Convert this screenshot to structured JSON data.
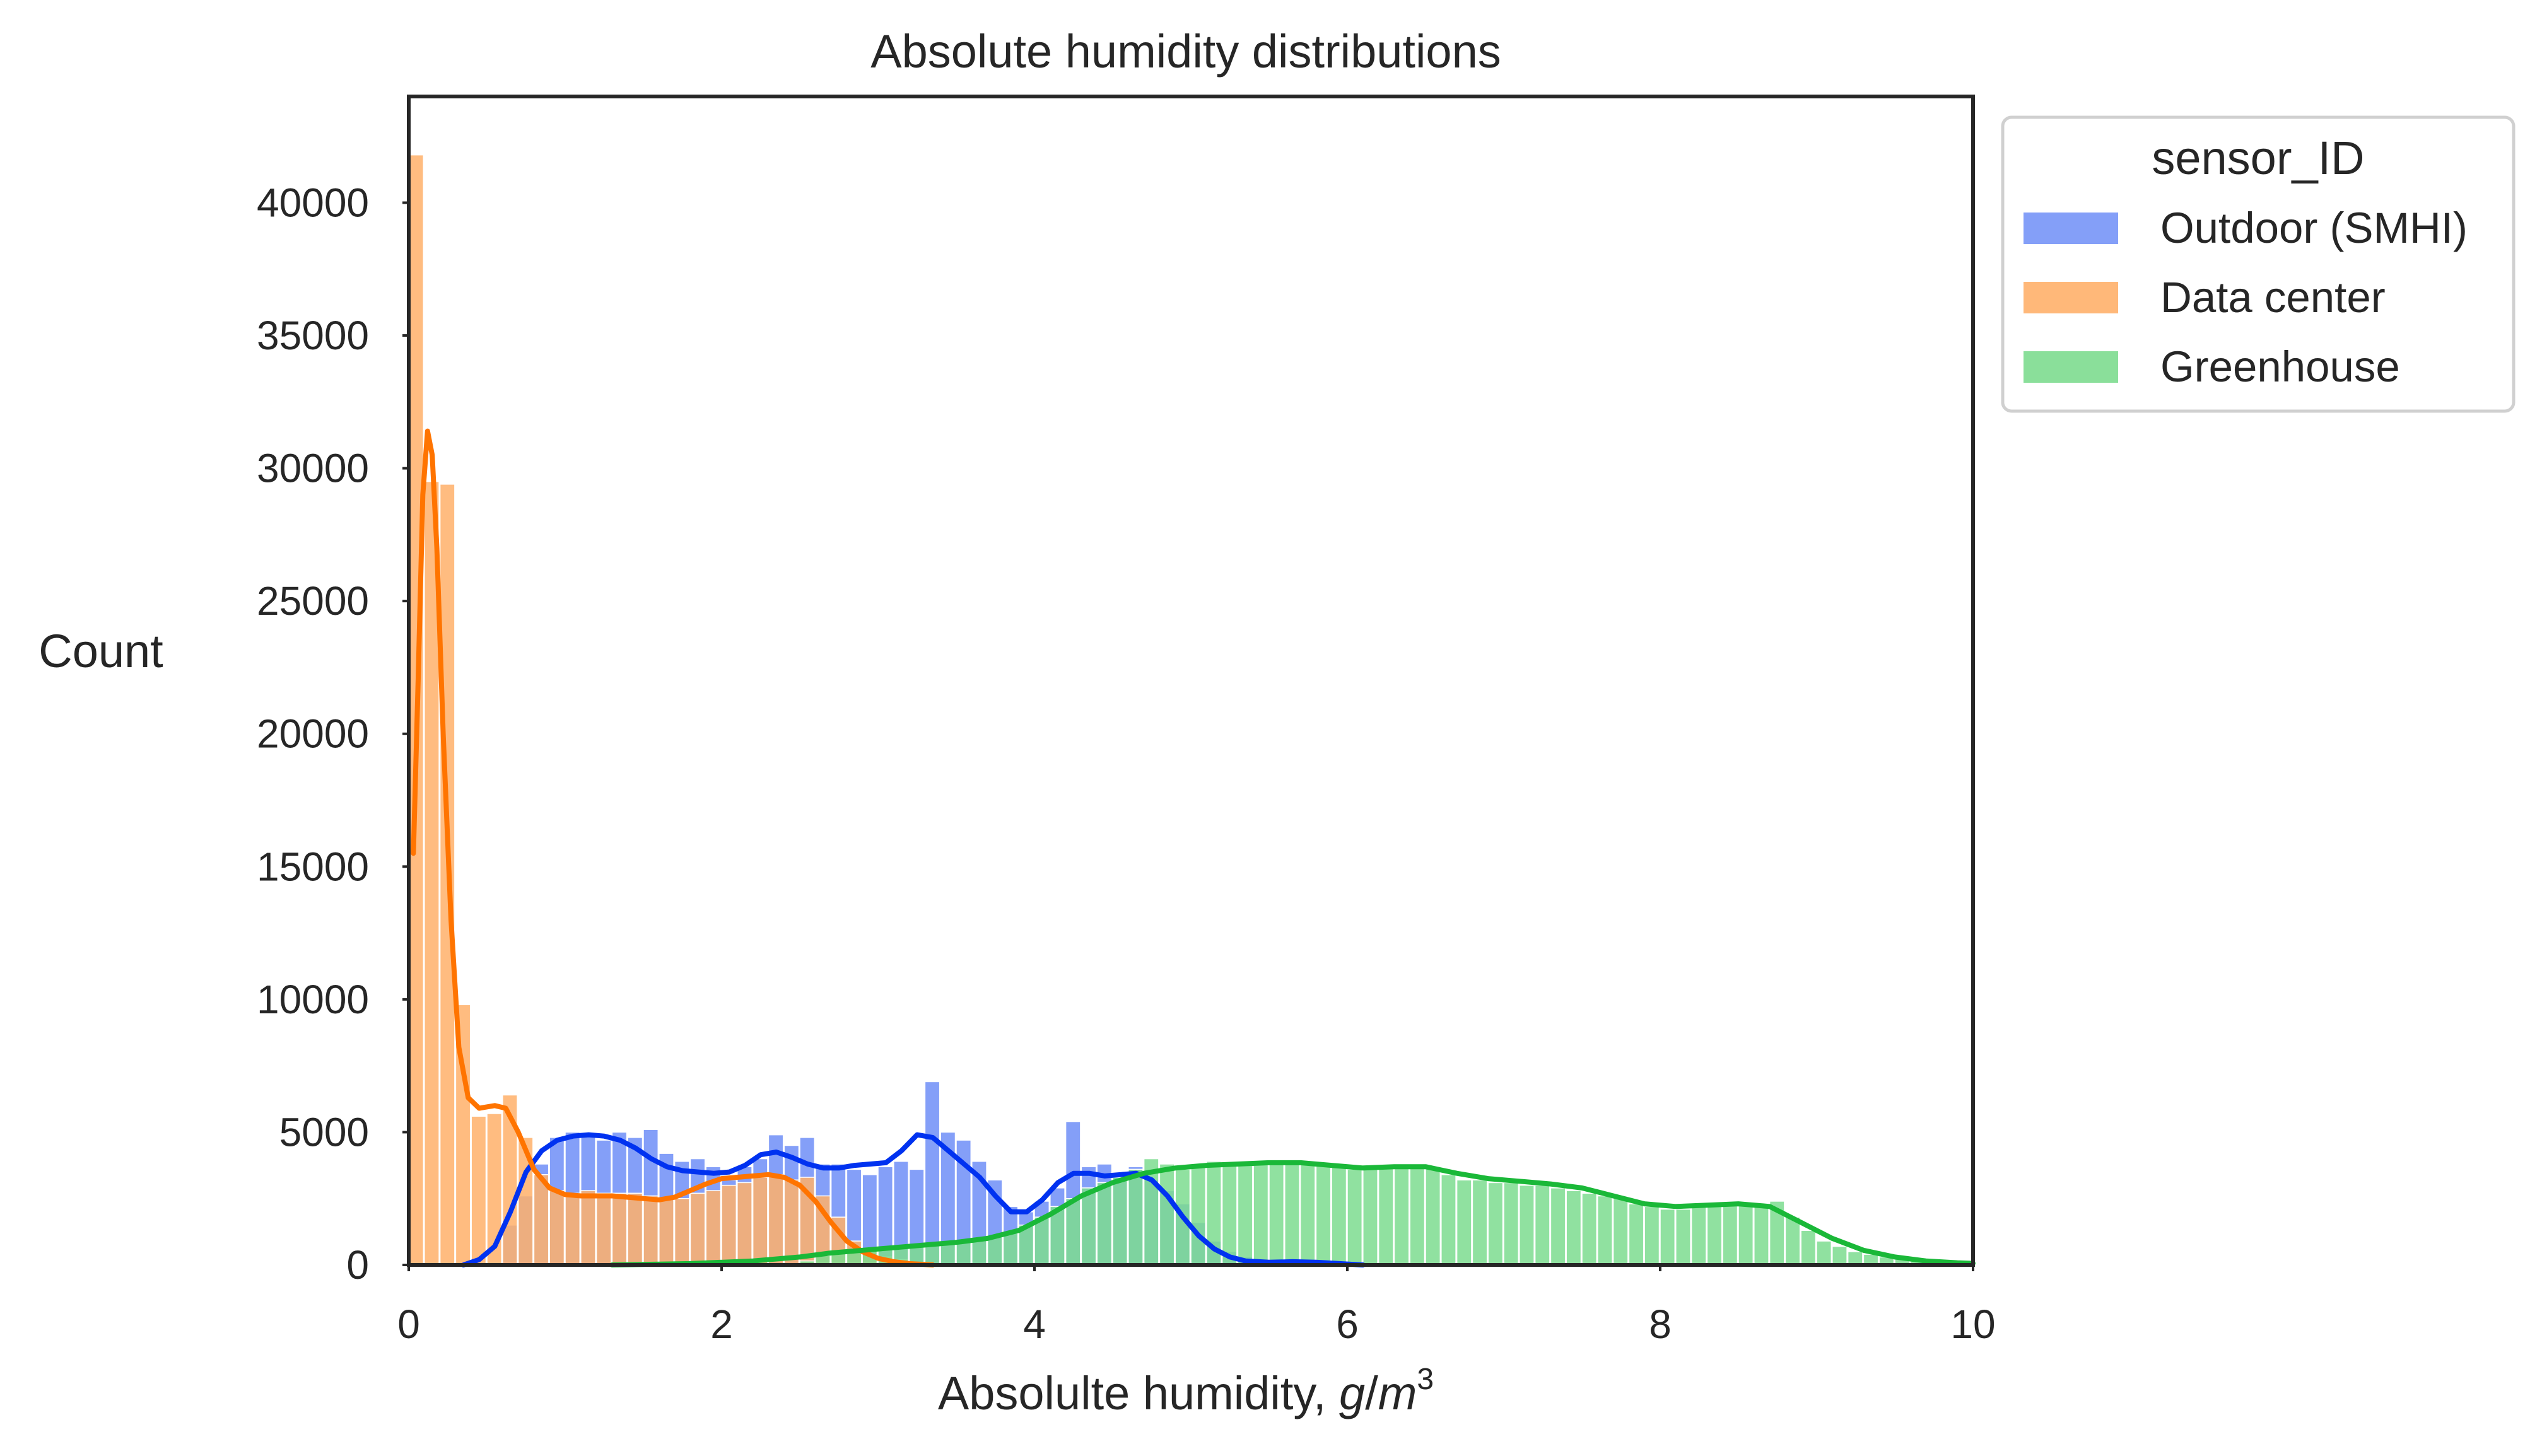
{
  "chart_data": {
    "type": "histogram",
    "title": "Absolute humidity distributions",
    "xlabel_text": "Absolulte humidity, ",
    "xlabel_unit_g": "g",
    "xlabel_unit_slash": "/",
    "xlabel_unit_m": "m",
    "xlabel_unit_exp": "3",
    "ylabel": "Count",
    "xlim": [
      0,
      10
    ],
    "ylim": [
      0,
      44000
    ],
    "xticks": [
      0,
      2,
      4,
      6,
      8,
      10
    ],
    "yticks": [
      0,
      5000,
      10000,
      15000,
      20000,
      25000,
      30000,
      35000,
      40000
    ],
    "bin_width": 0.1,
    "legend": {
      "title": "sensor_ID",
      "position": "upper right, outside plot",
      "entries": [
        "Outdoor (SMHI)",
        "Data center",
        "Greenhouse"
      ]
    },
    "series": [
      {
        "name": "Outdoor (SMHI)",
        "bar_color": "#5b7ff5",
        "kde_color": "#0032f0",
        "bins": [
          [
            0.6,
            1500
          ],
          [
            0.7,
            2600
          ],
          [
            0.8,
            3800
          ],
          [
            0.9,
            4800
          ],
          [
            1.0,
            5000
          ],
          [
            1.1,
            4900
          ],
          [
            1.2,
            4700
          ],
          [
            1.3,
            5000
          ],
          [
            1.4,
            4800
          ],
          [
            1.5,
            5100
          ],
          [
            1.6,
            4200
          ],
          [
            1.7,
            3900
          ],
          [
            1.8,
            4000
          ],
          [
            1.9,
            3700
          ],
          [
            2.0,
            3200
          ],
          [
            2.1,
            3700
          ],
          [
            2.2,
            4000
          ],
          [
            2.3,
            4900
          ],
          [
            2.4,
            4500
          ],
          [
            2.5,
            4800
          ],
          [
            2.6,
            3800
          ],
          [
            2.7,
            3800
          ],
          [
            2.8,
            3600
          ],
          [
            2.9,
            3400
          ],
          [
            3.0,
            3700
          ],
          [
            3.1,
            3900
          ],
          [
            3.2,
            3600
          ],
          [
            3.3,
            6900
          ],
          [
            3.4,
            5000
          ],
          [
            3.5,
            4700
          ],
          [
            3.6,
            3900
          ],
          [
            3.7,
            3200
          ],
          [
            3.8,
            2200
          ],
          [
            3.9,
            2000
          ],
          [
            4.0,
            2400
          ],
          [
            4.1,
            2900
          ],
          [
            4.2,
            5400
          ],
          [
            4.3,
            3700
          ],
          [
            4.4,
            3800
          ],
          [
            4.5,
            3400
          ],
          [
            4.6,
            3700
          ],
          [
            4.7,
            3200
          ],
          [
            4.8,
            2800
          ],
          [
            4.9,
            2300
          ],
          [
            5.0,
            1600
          ],
          [
            5.1,
            900
          ],
          [
            5.2,
            500
          ],
          [
            5.3,
            300
          ],
          [
            5.4,
            200
          ],
          [
            5.5,
            150
          ],
          [
            5.6,
            120
          ],
          [
            5.7,
            150
          ],
          [
            5.8,
            100
          ],
          [
            5.9,
            60
          ],
          [
            6.0,
            30
          ]
        ],
        "kde": [
          [
            0.35,
            0
          ],
          [
            0.45,
            200
          ],
          [
            0.55,
            700
          ],
          [
            0.65,
            2000
          ],
          [
            0.75,
            3500
          ],
          [
            0.85,
            4300
          ],
          [
            0.95,
            4700
          ],
          [
            1.05,
            4850
          ],
          [
            1.15,
            4900
          ],
          [
            1.25,
            4850
          ],
          [
            1.35,
            4700
          ],
          [
            1.45,
            4400
          ],
          [
            1.55,
            4000
          ],
          [
            1.65,
            3700
          ],
          [
            1.75,
            3550
          ],
          [
            1.85,
            3500
          ],
          [
            1.95,
            3450
          ],
          [
            2.05,
            3500
          ],
          [
            2.15,
            3750
          ],
          [
            2.25,
            4150
          ],
          [
            2.35,
            4250
          ],
          [
            2.45,
            4050
          ],
          [
            2.55,
            3800
          ],
          [
            2.65,
            3650
          ],
          [
            2.75,
            3650
          ],
          [
            2.85,
            3750
          ],
          [
            2.95,
            3800
          ],
          [
            3.05,
            3850
          ],
          [
            3.15,
            4300
          ],
          [
            3.25,
            4900
          ],
          [
            3.35,
            4800
          ],
          [
            3.45,
            4300
          ],
          [
            3.55,
            3800
          ],
          [
            3.65,
            3300
          ],
          [
            3.75,
            2600
          ],
          [
            3.85,
            2000
          ],
          [
            3.95,
            2000
          ],
          [
            4.05,
            2450
          ],
          [
            4.15,
            3100
          ],
          [
            4.25,
            3450
          ],
          [
            4.35,
            3450
          ],
          [
            4.45,
            3350
          ],
          [
            4.55,
            3400
          ],
          [
            4.65,
            3450
          ],
          [
            4.75,
            3200
          ],
          [
            4.85,
            2600
          ],
          [
            4.95,
            1800
          ],
          [
            5.05,
            1100
          ],
          [
            5.15,
            600
          ],
          [
            5.25,
            300
          ],
          [
            5.35,
            150
          ],
          [
            5.5,
            100
          ],
          [
            5.65,
            120
          ],
          [
            5.8,
            100
          ],
          [
            5.95,
            50
          ],
          [
            6.1,
            0
          ]
        ]
      },
      {
        "name": "Data center",
        "bar_color": "#ffb06a",
        "kde_color": "#ff7400",
        "bins": [
          [
            0.0,
            41800
          ],
          [
            0.1,
            29500
          ],
          [
            0.2,
            29400
          ],
          [
            0.3,
            9800
          ],
          [
            0.4,
            5600
          ],
          [
            0.5,
            5700
          ],
          [
            0.6,
            6400
          ],
          [
            0.7,
            4800
          ],
          [
            0.8,
            3400
          ],
          [
            0.9,
            2800
          ],
          [
            1.0,
            2700
          ],
          [
            1.1,
            2800
          ],
          [
            1.2,
            2700
          ],
          [
            1.3,
            2700
          ],
          [
            1.4,
            2700
          ],
          [
            1.5,
            2600
          ],
          [
            1.6,
            2500
          ],
          [
            1.7,
            2500
          ],
          [
            1.8,
            2700
          ],
          [
            1.9,
            2800
          ],
          [
            2.0,
            3000
          ],
          [
            2.1,
            3100
          ],
          [
            2.2,
            3300
          ],
          [
            2.3,
            3400
          ],
          [
            2.4,
            3200
          ],
          [
            2.5,
            3300
          ],
          [
            2.6,
            2600
          ],
          [
            2.7,
            1800
          ],
          [
            2.8,
            900
          ],
          [
            2.9,
            500
          ],
          [
            3.0,
            300
          ],
          [
            3.1,
            200
          ],
          [
            3.2,
            100
          ],
          [
            3.3,
            60
          ],
          [
            3.4,
            30
          ]
        ],
        "kde": [
          [
            0.03,
            15500
          ],
          [
            0.06,
            22000
          ],
          [
            0.09,
            29000
          ],
          [
            0.12,
            31400
          ],
          [
            0.15,
            30500
          ],
          [
            0.18,
            27000
          ],
          [
            0.22,
            20000
          ],
          [
            0.27,
            13000
          ],
          [
            0.32,
            8200
          ],
          [
            0.38,
            6300
          ],
          [
            0.45,
            5900
          ],
          [
            0.55,
            6000
          ],
          [
            0.62,
            5900
          ],
          [
            0.7,
            5000
          ],
          [
            0.8,
            3600
          ],
          [
            0.9,
            2900
          ],
          [
            1.0,
            2650
          ],
          [
            1.1,
            2600
          ],
          [
            1.2,
            2600
          ],
          [
            1.3,
            2600
          ],
          [
            1.4,
            2550
          ],
          [
            1.5,
            2500
          ],
          [
            1.6,
            2450
          ],
          [
            1.7,
            2550
          ],
          [
            1.8,
            2800
          ],
          [
            1.9,
            3050
          ],
          [
            2.0,
            3250
          ],
          [
            2.1,
            3300
          ],
          [
            2.2,
            3350
          ],
          [
            2.3,
            3400
          ],
          [
            2.4,
            3300
          ],
          [
            2.5,
            3000
          ],
          [
            2.6,
            2400
          ],
          [
            2.7,
            1600
          ],
          [
            2.8,
            900
          ],
          [
            2.9,
            500
          ],
          [
            3.0,
            250
          ],
          [
            3.1,
            120
          ],
          [
            3.2,
            50
          ],
          [
            3.35,
            0
          ]
        ]
      },
      {
        "name": "Greenhouse",
        "bar_color": "#7ddc8f",
        "kde_color": "#1ab838",
        "bins": [
          [
            1.5,
            30
          ],
          [
            2.0,
            60
          ],
          [
            2.5,
            150
          ],
          [
            2.6,
            350
          ],
          [
            2.7,
            450
          ],
          [
            2.8,
            500
          ],
          [
            2.9,
            550
          ],
          [
            3.0,
            650
          ],
          [
            3.1,
            700
          ],
          [
            3.2,
            720
          ],
          [
            3.3,
            750
          ],
          [
            3.4,
            800
          ],
          [
            3.5,
            850
          ],
          [
            3.6,
            950
          ],
          [
            3.7,
            1050
          ],
          [
            3.8,
            1200
          ],
          [
            3.9,
            1500
          ],
          [
            4.0,
            1800
          ],
          [
            4.1,
            2200
          ],
          [
            4.2,
            2500
          ],
          [
            4.3,
            2900
          ],
          [
            4.4,
            3100
          ],
          [
            4.5,
            3300
          ],
          [
            4.6,
            3600
          ],
          [
            4.7,
            4000
          ],
          [
            4.8,
            3800
          ],
          [
            4.9,
            3600
          ],
          [
            5.0,
            3800
          ],
          [
            5.1,
            3900
          ],
          [
            5.2,
            3800
          ],
          [
            5.3,
            3900
          ],
          [
            5.4,
            3900
          ],
          [
            5.5,
            3900
          ],
          [
            5.6,
            3900
          ],
          [
            5.7,
            3800
          ],
          [
            5.8,
            3800
          ],
          [
            5.9,
            3700
          ],
          [
            6.0,
            3600
          ],
          [
            6.1,
            3600
          ],
          [
            6.2,
            3700
          ],
          [
            6.3,
            3700
          ],
          [
            6.4,
            3800
          ],
          [
            6.5,
            3700
          ],
          [
            6.6,
            3400
          ],
          [
            6.7,
            3200
          ],
          [
            6.8,
            3200
          ],
          [
            6.9,
            3100
          ],
          [
            7.0,
            3100
          ],
          [
            7.1,
            3000
          ],
          [
            7.2,
            3000
          ],
          [
            7.3,
            2900
          ],
          [
            7.4,
            2800
          ],
          [
            7.5,
            2700
          ],
          [
            7.6,
            2600
          ],
          [
            7.7,
            2500
          ],
          [
            7.8,
            2300
          ],
          [
            7.9,
            2200
          ],
          [
            8.0,
            2100
          ],
          [
            8.1,
            2100
          ],
          [
            8.2,
            2200
          ],
          [
            8.3,
            2200
          ],
          [
            8.4,
            2300
          ],
          [
            8.5,
            2300
          ],
          [
            8.6,
            2300
          ],
          [
            8.7,
            2400
          ],
          [
            8.8,
            1800
          ],
          [
            8.9,
            1300
          ],
          [
            9.0,
            900
          ],
          [
            9.1,
            700
          ],
          [
            9.2,
            500
          ],
          [
            9.3,
            400
          ],
          [
            9.4,
            300
          ],
          [
            9.5,
            220
          ],
          [
            9.6,
            160
          ],
          [
            9.7,
            120
          ],
          [
            9.8,
            90
          ],
          [
            9.9,
            60
          ]
        ],
        "kde": [
          [
            1.3,
            0
          ],
          [
            1.8,
            50
          ],
          [
            2.2,
            150
          ],
          [
            2.5,
            300
          ],
          [
            2.7,
            450
          ],
          [
            2.9,
            550
          ],
          [
            3.1,
            650
          ],
          [
            3.3,
            750
          ],
          [
            3.5,
            850
          ],
          [
            3.7,
            1000
          ],
          [
            3.9,
            1300
          ],
          [
            4.1,
            1900
          ],
          [
            4.3,
            2600
          ],
          [
            4.5,
            3100
          ],
          [
            4.7,
            3450
          ],
          [
            4.9,
            3650
          ],
          [
            5.1,
            3750
          ],
          [
            5.3,
            3800
          ],
          [
            5.5,
            3850
          ],
          [
            5.7,
            3850
          ],
          [
            5.9,
            3750
          ],
          [
            6.1,
            3650
          ],
          [
            6.3,
            3700
          ],
          [
            6.5,
            3700
          ],
          [
            6.7,
            3450
          ],
          [
            6.9,
            3250
          ],
          [
            7.1,
            3150
          ],
          [
            7.3,
            3050
          ],
          [
            7.5,
            2900
          ],
          [
            7.7,
            2600
          ],
          [
            7.9,
            2300
          ],
          [
            8.1,
            2200
          ],
          [
            8.3,
            2250
          ],
          [
            8.5,
            2300
          ],
          [
            8.7,
            2200
          ],
          [
            8.9,
            1600
          ],
          [
            9.1,
            1000
          ],
          [
            9.3,
            550
          ],
          [
            9.5,
            300
          ],
          [
            9.7,
            150
          ],
          [
            9.9,
            80
          ],
          [
            10.0,
            60
          ]
        ]
      }
    ]
  }
}
